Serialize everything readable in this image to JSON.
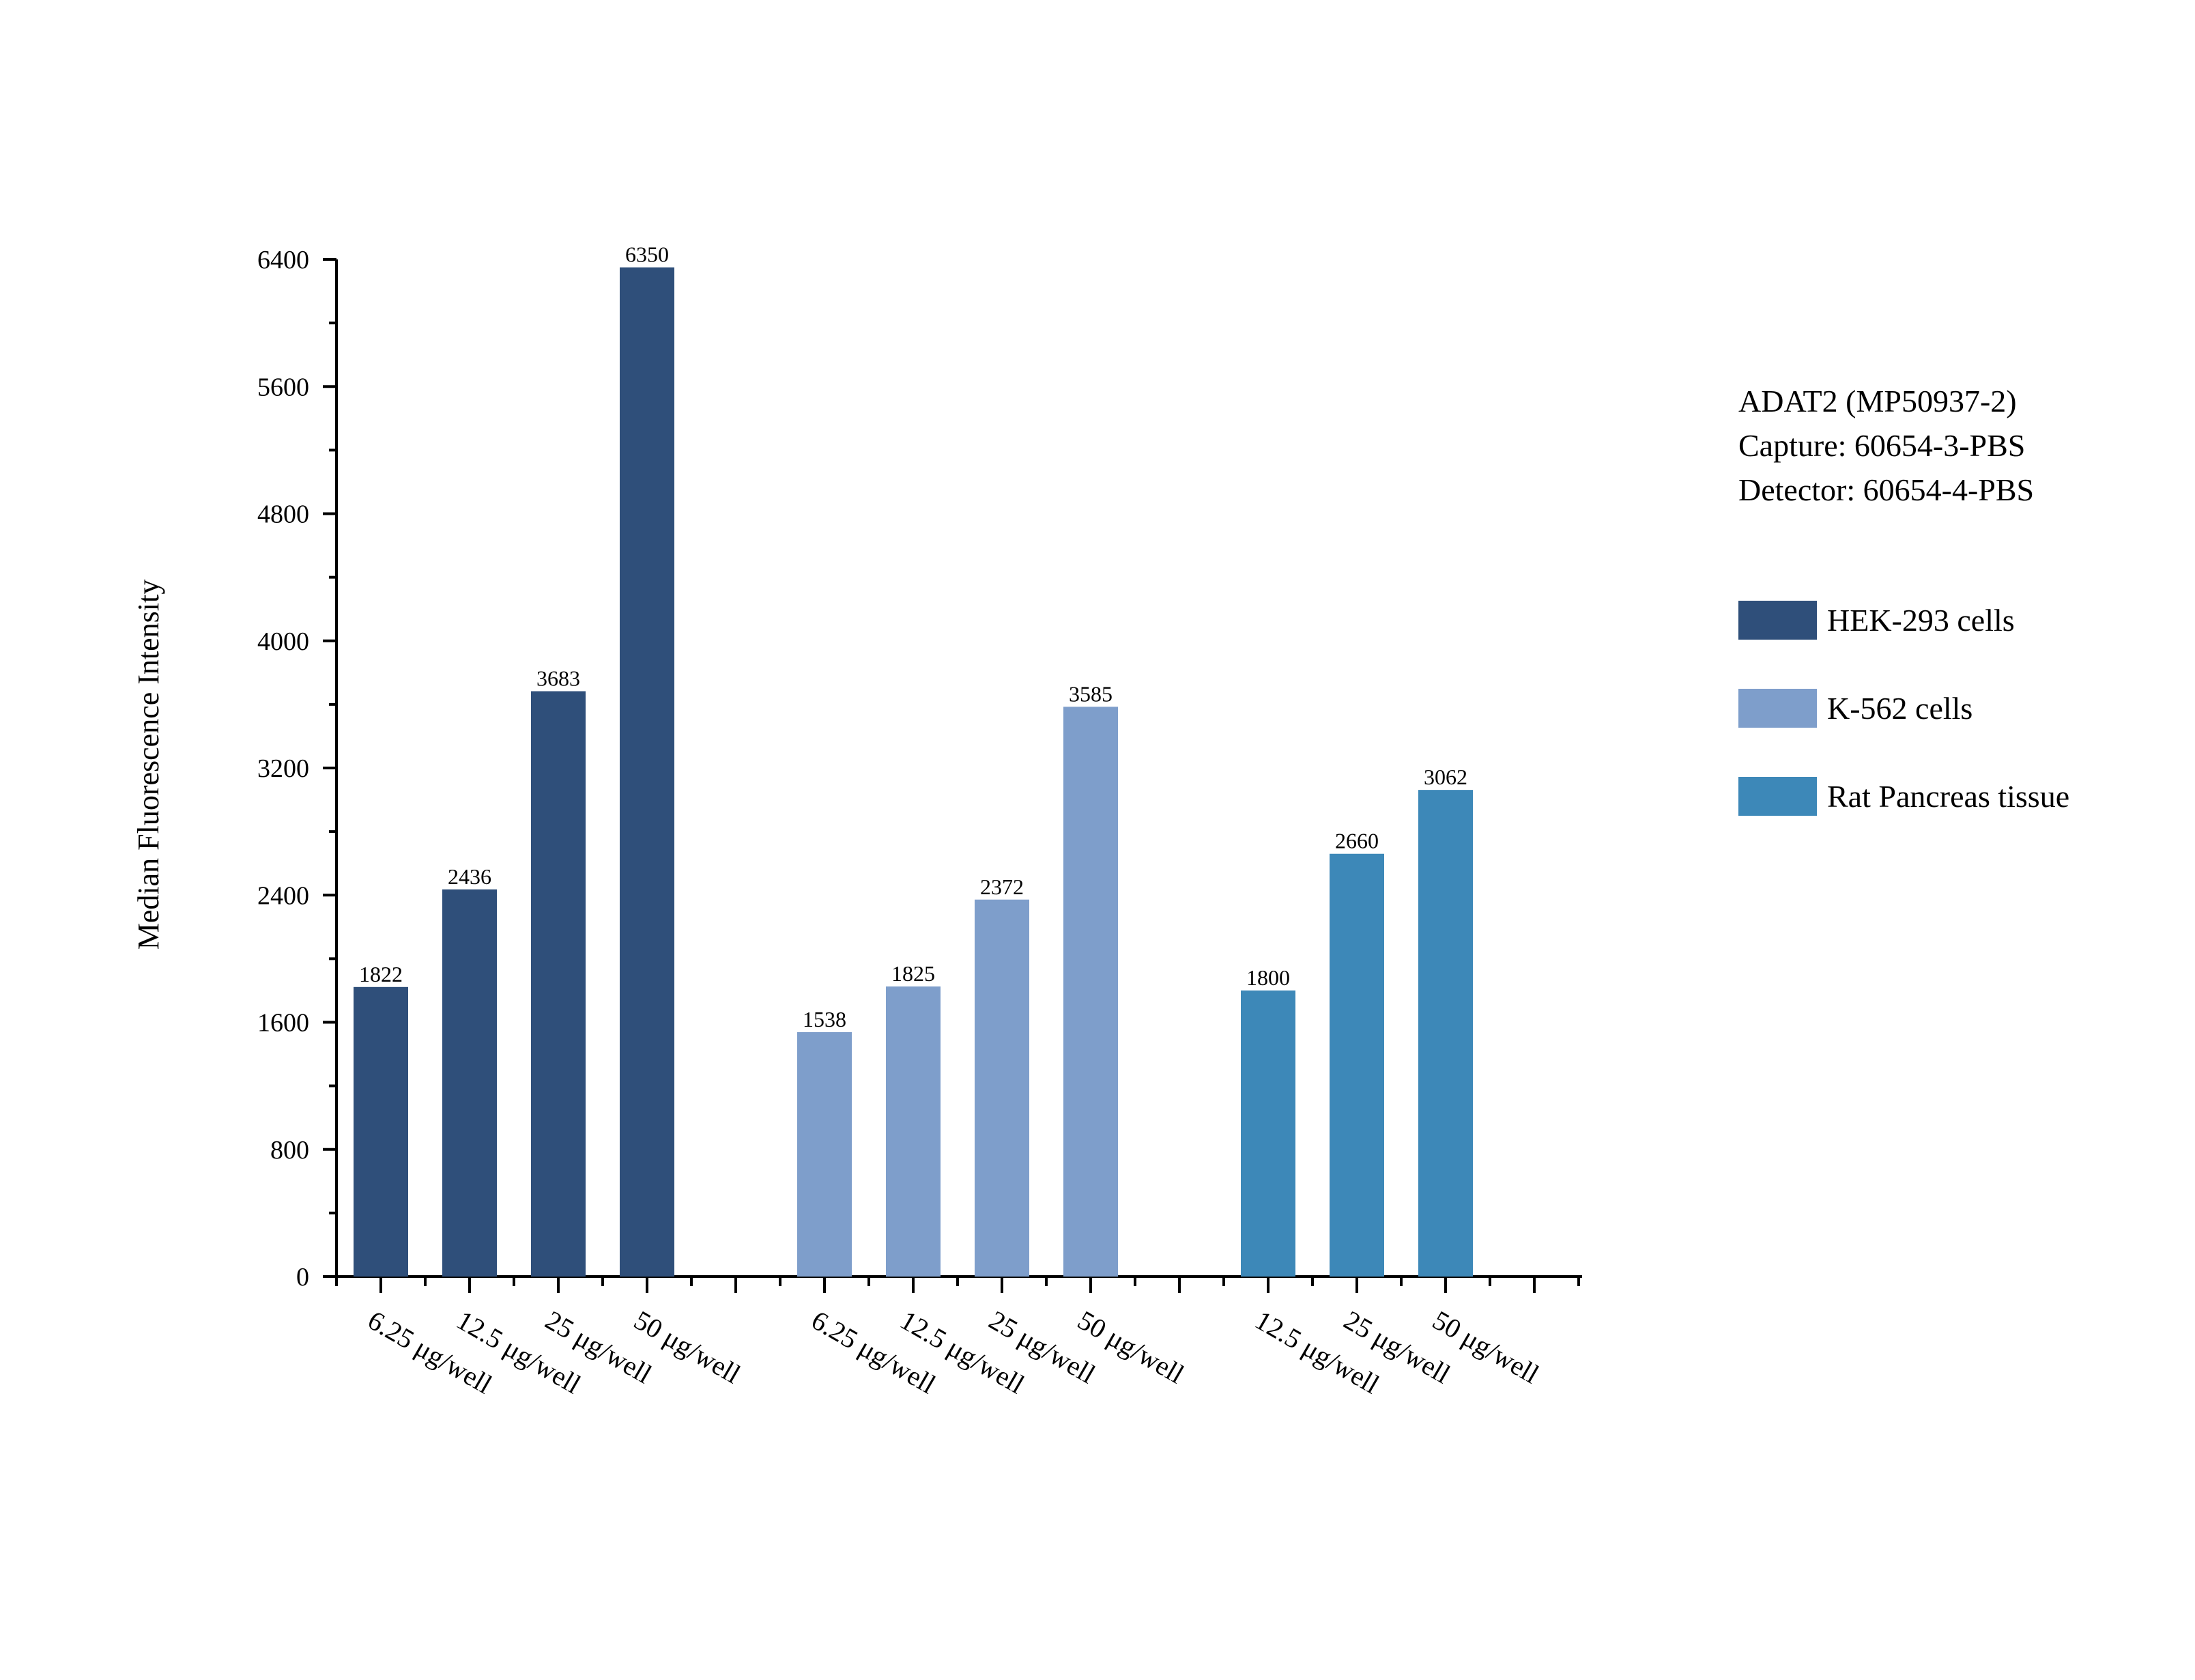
{
  "chart_data": {
    "type": "bar",
    "ylabel": "Median Fluorescence Intensity",
    "xlabel": "",
    "ylim": [
      0,
      6400
    ],
    "yticks": [
      0,
      800,
      1600,
      2400,
      3200,
      4000,
      4800,
      5600,
      6400
    ],
    "grid": false,
    "legend_position": "right",
    "info": [
      "ADAT2 (MP50937-2)",
      "Capture: 60654-3-PBS",
      "Detector: 60654-4-PBS"
    ],
    "groups": [
      {
        "name": "HEK-293 cells",
        "color": "#2f4f7a",
        "categories": [
          "6.25 μg/well",
          "12.5 μg/well",
          "25 μg/well",
          "50 μg/well"
        ],
        "values": [
          1822,
          2436,
          3683,
          6350
        ]
      },
      {
        "name": "K-562 cells",
        "color": "#7e9ecb",
        "categories": [
          "6.25 μg/well",
          "12.5 μg/well",
          "25 μg/well",
          "50 μg/well"
        ],
        "values": [
          1538,
          1825,
          2372,
          3585
        ]
      },
      {
        "name": "Rat Pancreas tissue",
        "color": "#3d88b8",
        "categories": [
          "12.5 μg/well",
          "25 μg/well",
          "50 μg/well"
        ],
        "values": [
          1800,
          2660,
          3062
        ]
      }
    ]
  }
}
